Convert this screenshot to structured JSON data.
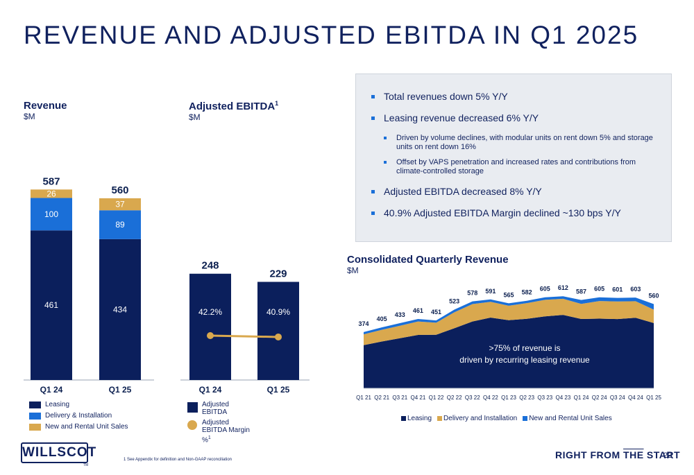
{
  "title": "REVENUE AND ADJUSTED EBITDA IN Q1 2025",
  "colors": {
    "leasing": "#0b1f5c",
    "delivery": "#1a6fd8",
    "sales": "#d9a84e",
    "margin": "#d9a84e"
  },
  "revenue_chart": {
    "title": "Revenue",
    "subtitle": "$M",
    "legend": [
      "Leasing",
      "Delivery & Installation",
      "New and Rental Unit Sales"
    ]
  },
  "ebitda_chart": {
    "title": "Adjusted EBITDA",
    "title_sup": "1",
    "subtitle": "$M",
    "legend_ebitda": "Adjusted EBITDA",
    "legend_margin": "Adjusted EBITDA Margin %",
    "legend_margin_sup": "1"
  },
  "bullets": {
    "b1": "Total revenues down 5% Y/Y",
    "b2": "Leasing revenue decreased 6% Y/Y",
    "b2a": "Driven by volume declines, with modular units on rent down 5% and storage units on rent down 16%",
    "b2b": "Offset by VAPS penetration and increased rates and contributions from climate-controlled storage",
    "b3": "Adjusted EBITDA decreased 8% Y/Y",
    "b4": "40.9% Adjusted EBITDA Margin declined ~130 bps Y/Y"
  },
  "quarterly_chart": {
    "title": "Consolidated Quarterly Revenue",
    "subtitle": "$M",
    "annotation_line1": ">75% of revenue is",
    "annotation_line2": "driven by recurring leasing revenue",
    "legend": [
      "Leasing",
      "Delivery and Installation",
      "New and Rental Unit Sales"
    ]
  },
  "chart_data": [
    {
      "type": "bar",
      "stacked": true,
      "title": "Revenue",
      "ylabel": "$M",
      "categories": [
        "Q1 24",
        "Q1 25"
      ],
      "series": [
        {
          "name": "Leasing",
          "values": [
            461,
            434
          ]
        },
        {
          "name": "Delivery & Installation",
          "values": [
            100,
            89
          ]
        },
        {
          "name": "New and Rental Unit Sales",
          "values": [
            26,
            37
          ]
        }
      ],
      "totals": [
        587,
        560
      ],
      "ylim": [
        0,
        650
      ]
    },
    {
      "type": "bar",
      "title": "Adjusted EBITDA",
      "ylabel": "$M",
      "categories": [
        "Q1 24",
        "Q1 25"
      ],
      "series": [
        {
          "name": "Adjusted EBITDA",
          "values": [
            248,
            229
          ]
        }
      ],
      "margin": {
        "name": "Adjusted EBITDA Margin %",
        "values": [
          42.2,
          40.9
        ],
        "labels": [
          "42.2%",
          "40.9%"
        ]
      },
      "ylim": [
        0,
        650
      ]
    },
    {
      "type": "area",
      "stacked": true,
      "title": "Consolidated Quarterly Revenue",
      "ylabel": "$M",
      "x": [
        "Q1 21",
        "Q2 21",
        "Q3 21",
        "Q4 21",
        "Q1 22",
        "Q2 22",
        "Q3 22",
        "Q4 22",
        "Q1 23",
        "Q2 23",
        "Q3 23",
        "Q4 23",
        "Q1 24",
        "Q2 24",
        "Q3 24",
        "Q4 24",
        "Q1 25"
      ],
      "totals": [
        374,
        405,
        433,
        461,
        451,
        523,
        578,
        591,
        565,
        582,
        605,
        612,
        587,
        605,
        601,
        603,
        560
      ],
      "series": [
        {
          "name": "Leasing",
          "values": [
            287,
            311,
            333,
            355,
            356,
            399,
            444,
            470,
            453,
            462,
            478,
            488,
            461,
            463,
            460,
            469,
            434
          ]
        },
        {
          "name": "Delivery and Installation",
          "values": [
            72,
            78,
            83,
            89,
            80,
            106,
            116,
            105,
            96,
            104,
            110,
            107,
            100,
            117,
            117,
            110,
            89
          ]
        },
        {
          "name": "New and Rental Unit Sales",
          "values": [
            15,
            16,
            17,
            17,
            15,
            18,
            18,
            16,
            16,
            16,
            17,
            17,
            26,
            25,
            24,
            24,
            37
          ]
        }
      ],
      "ylim": [
        0,
        700
      ],
      "legend_position": "bottom"
    }
  ]
}
